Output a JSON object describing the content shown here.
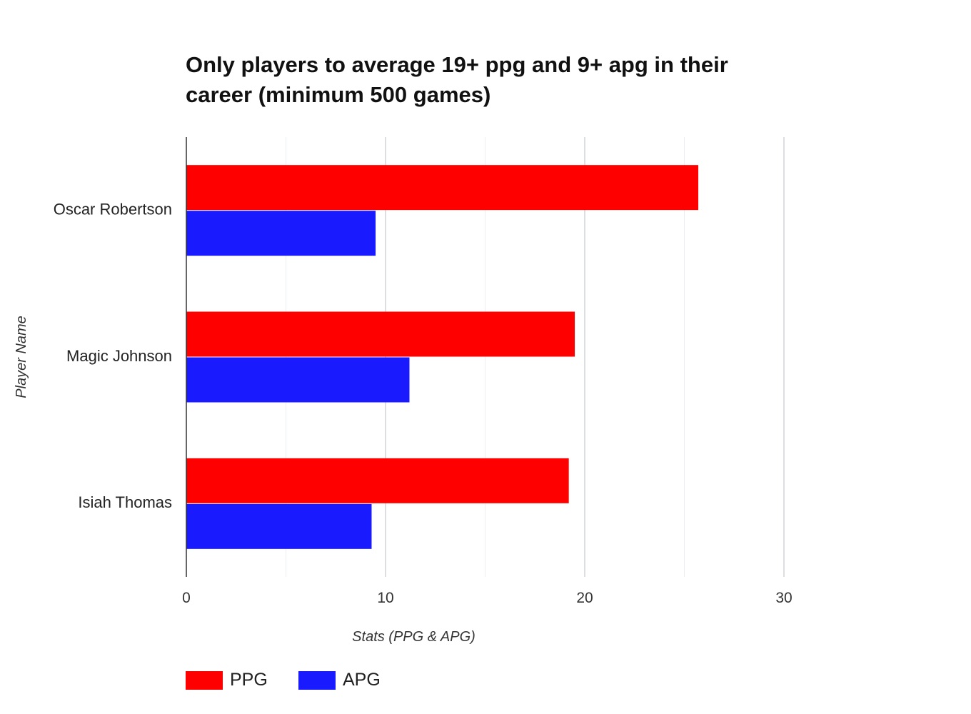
{
  "chart_data": {
    "type": "bar",
    "orientation": "horizontal",
    "title": "Only players to average 19+ ppg and 9+ apg in their career (minimum 500 games)",
    "xlabel": "Stats (PPG & APG)",
    "ylabel": "Player Name",
    "categories": [
      "Oscar Robertson",
      "Magic Johnson",
      "Isiah Thomas"
    ],
    "series": [
      {
        "name": "PPG",
        "color": "#ff0000",
        "values": [
          25.7,
          19.5,
          19.2
        ]
      },
      {
        "name": "APG",
        "color": "#1a1aff",
        "values": [
          9.5,
          11.2,
          9.3
        ]
      }
    ],
    "xlim": [
      0,
      30
    ],
    "xticks": [
      "0",
      "10",
      "20",
      "30"
    ],
    "grid": true,
    "legend": "bottom-left"
  }
}
